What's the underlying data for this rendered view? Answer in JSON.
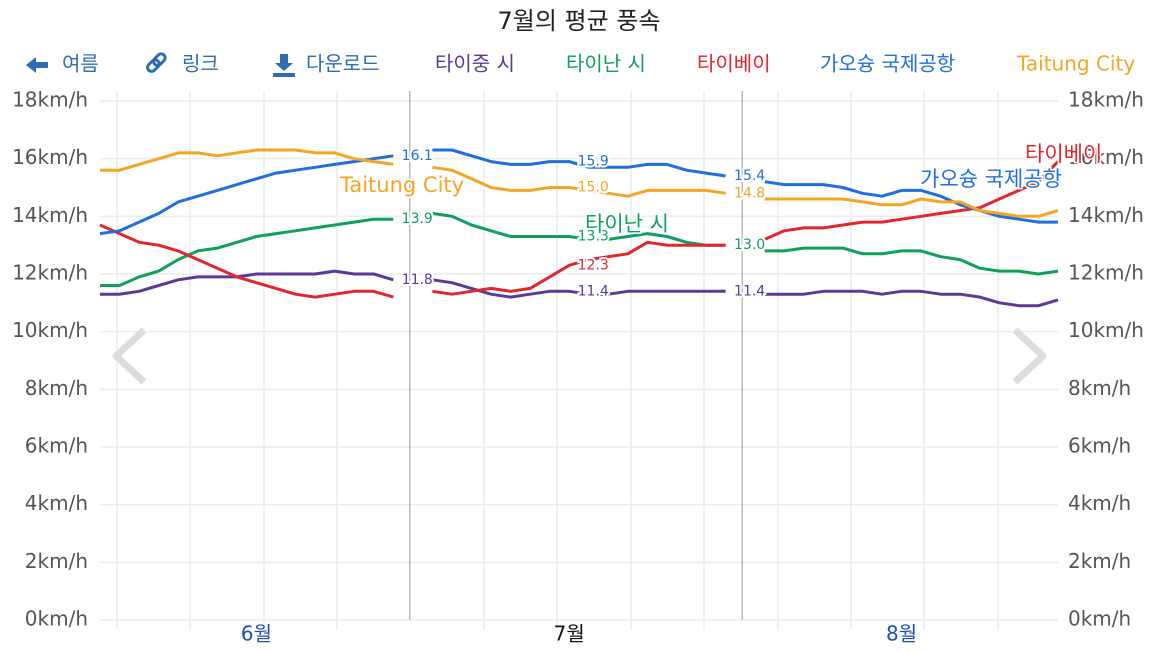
{
  "toolbar": [
    "여름",
    "링크",
    "다운로드"
  ],
  "chart_data": {
    "type": "line",
    "title": "7월의 평균 풍속",
    "categories": [
      null,
      null,
      null,
      null,
      null,
      null,
      null,
      null,
      "6월",
      null,
      null,
      null,
      null,
      null,
      null,
      null,
      null,
      null,
      null,
      null,
      null,
      null,
      null,
      null,
      "7월",
      null,
      null,
      null,
      null,
      null,
      null,
      null,
      null,
      null,
      null,
      null,
      null,
      null,
      null,
      null,
      null,
      "8월",
      null,
      null,
      null,
      null,
      null,
      null,
      null,
      null
    ],
    "ylim": [
      0,
      18
    ],
    "yticks": [
      {
        "value": 0,
        "label": "0km/h"
      },
      {
        "value": 2,
        "label": "2km/h"
      },
      {
        "value": 4,
        "label": "4km/h"
      },
      {
        "value": 6,
        "label": "6km/h"
      },
      {
        "value": 8,
        "label": "8km/h"
      },
      {
        "value": 10,
        "label": "10km/h"
      },
      {
        "value": 12,
        "label": "12km/h"
      },
      {
        "value": 14,
        "label": "14km/h"
      },
      {
        "value": 16,
        "label": "16km/h"
      },
      {
        "value": 18,
        "label": "18km/h"
      }
    ],
    "grid": true,
    "series": [
      {
        "name": "타이중 시",
        "color": "#5b3a97",
        "values": [
          11.3,
          11.3,
          11.4,
          11.6,
          11.8,
          11.9,
          11.9,
          11.9,
          12.0,
          12.0,
          12.0,
          12.0,
          12.1,
          12.0,
          12.0,
          11.8,
          null,
          11.8,
          11.7,
          11.5,
          11.3,
          11.2,
          11.3,
          11.4,
          11.4,
          11.3,
          11.3,
          11.4,
          11.4,
          11.4,
          11.4,
          11.4,
          11.4,
          null,
          11.3,
          11.3,
          11.3,
          11.4,
          11.4,
          11.4,
          11.3,
          11.4,
          11.4,
          11.3,
          11.3,
          11.2,
          11.0,
          10.9,
          10.9,
          11.1
        ],
        "value_labels": [
          null,
          null,
          null,
          null,
          null,
          null,
          null,
          null,
          null,
          null,
          null,
          null,
          null,
          null,
          null,
          "11.8",
          null,
          null,
          null,
          null,
          null,
          null,
          null,
          null,
          "11.4",
          null,
          null,
          null,
          null,
          null,
          null,
          null,
          "11.4",
          null,
          null,
          null,
          null,
          null,
          null,
          null,
          null,
          null,
          null,
          null,
          null,
          null,
          null,
          null,
          null,
          null
        ]
      },
      {
        "name": "타이난 시",
        "color": "#11a05b",
        "values": [
          11.6,
          11.6,
          11.9,
          12.1,
          12.5,
          12.8,
          12.9,
          13.1,
          13.3,
          13.4,
          13.5,
          13.6,
          13.7,
          13.8,
          13.9,
          13.9,
          null,
          14.1,
          14.0,
          13.7,
          13.5,
          13.3,
          13.3,
          13.3,
          13.3,
          13.2,
          13.2,
          13.3,
          13.4,
          13.3,
          13.1,
          13.0,
          13.0,
          null,
          12.8,
          12.8,
          12.9,
          12.9,
          12.9,
          12.7,
          12.7,
          12.8,
          12.8,
          12.6,
          12.5,
          12.2,
          12.1,
          12.1,
          12.0,
          12.1
        ],
        "value_labels": [
          null,
          null,
          null,
          null,
          null,
          null,
          null,
          null,
          null,
          null,
          null,
          null,
          null,
          null,
          null,
          "13.9",
          null,
          null,
          null,
          null,
          null,
          null,
          null,
          null,
          "13.3",
          null,
          null,
          null,
          null,
          null,
          null,
          null,
          "13.0",
          null,
          null,
          null,
          null,
          null,
          null,
          null,
          null,
          null,
          null,
          null,
          null,
          null,
          null,
          null,
          null,
          null
        ]
      },
      {
        "name": "타이베이",
        "color": "#e3262b",
        "values": [
          13.7,
          13.4,
          13.1,
          13.0,
          12.8,
          12.5,
          12.2,
          11.9,
          11.7,
          11.5,
          11.3,
          11.2,
          11.3,
          11.4,
          11.4,
          11.2,
          null,
          11.4,
          11.3,
          11.4,
          11.5,
          11.4,
          11.5,
          11.9,
          12.3,
          12.5,
          12.6,
          12.7,
          13.1,
          13.0,
          13.0,
          13.0,
          13.0,
          null,
          13.2,
          13.5,
          13.6,
          13.6,
          13.7,
          13.8,
          13.8,
          13.9,
          14.0,
          14.1,
          14.2,
          14.3,
          14.6,
          14.9,
          15.2,
          15.9
        ],
        "value_labels": [
          null,
          null,
          null,
          null,
          null,
          null,
          null,
          null,
          null,
          null,
          null,
          null,
          null,
          null,
          null,
          null,
          null,
          null,
          null,
          null,
          null,
          null,
          null,
          null,
          "12.3",
          null,
          null,
          null,
          null,
          null,
          null,
          null,
          null,
          null,
          null,
          null,
          null,
          null,
          null,
          null,
          null,
          null,
          null,
          null,
          null,
          null,
          null,
          null,
          null,
          null
        ]
      },
      {
        "name": "가오슝 국제공항",
        "color": "#1f6fe0",
        "values": [
          13.4,
          13.5,
          13.8,
          14.1,
          14.5,
          14.7,
          14.9,
          15.1,
          15.3,
          15.5,
          15.6,
          15.7,
          15.8,
          15.9,
          16.0,
          16.1,
          null,
          16.3,
          16.3,
          16.1,
          15.9,
          15.8,
          15.8,
          15.9,
          15.9,
          15.7,
          15.7,
          15.7,
          15.8,
          15.8,
          15.6,
          15.5,
          15.4,
          null,
          15.2,
          15.1,
          15.1,
          15.1,
          15.0,
          14.8,
          14.7,
          14.9,
          14.9,
          14.7,
          14.4,
          14.2,
          14.0,
          13.9,
          13.8,
          13.8
        ],
        "value_labels": [
          null,
          null,
          null,
          null,
          null,
          null,
          null,
          null,
          null,
          null,
          null,
          null,
          null,
          null,
          null,
          "16.1",
          null,
          null,
          null,
          null,
          null,
          null,
          null,
          null,
          "15.9",
          null,
          null,
          null,
          null,
          null,
          null,
          null,
          "15.4",
          null,
          null,
          null,
          null,
          null,
          null,
          null,
          null,
          null,
          null,
          null,
          null,
          null,
          null,
          null,
          null,
          null
        ]
      },
      {
        "name": "Taitung City",
        "color": "#f5a524",
        "values": [
          15.6,
          15.6,
          15.8,
          16.0,
          16.2,
          16.2,
          16.1,
          16.2,
          16.3,
          16.3,
          16.3,
          16.2,
          16.2,
          16.0,
          15.9,
          15.8,
          null,
          15.7,
          15.6,
          15.3,
          15.0,
          14.9,
          14.9,
          15.0,
          15.0,
          14.9,
          14.8,
          14.7,
          14.9,
          14.9,
          14.9,
          14.9,
          14.8,
          null,
          14.6,
          14.6,
          14.6,
          14.6,
          14.6,
          14.5,
          14.4,
          14.4,
          14.6,
          14.5,
          14.5,
          14.2,
          14.1,
          14.0,
          14.0,
          14.2
        ],
        "value_labels": [
          null,
          null,
          null,
          null,
          null,
          null,
          null,
          null,
          null,
          null,
          null,
          null,
          null,
          null,
          null,
          null,
          null,
          null,
          null,
          null,
          null,
          null,
          null,
          null,
          "15.0",
          null,
          null,
          null,
          null,
          null,
          null,
          null,
          "14.8",
          null,
          null,
          null,
          null,
          null,
          null,
          null,
          null,
          null,
          null,
          null,
          null,
          null,
          null,
          null,
          null,
          null
        ]
      }
    ]
  }
}
